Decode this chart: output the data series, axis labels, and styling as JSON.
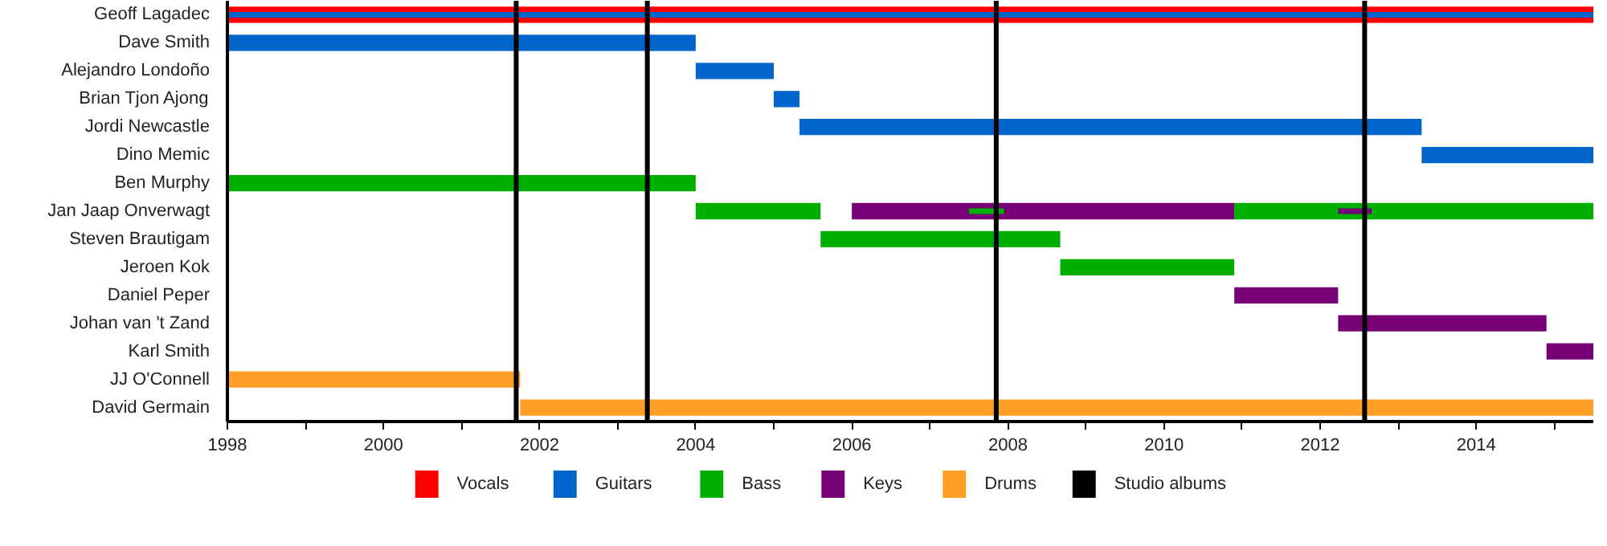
{
  "chart_data": {
    "type": "bar",
    "orientation": "horizontal",
    "categories": [
      "Geoff Lagadec",
      "Dave Smith",
      "Alejandro Londoño",
      "Brian Tjon Ajong",
      "Jordi Newcastle",
      "Dino Memic",
      "Ben Murphy",
      "Jan Jaap Onverwagt",
      "Steven Brautigam",
      "Jeroen Kok",
      "Daniel Peper",
      "Johan van 't Zand",
      "Karl Smith",
      "JJ O'Connell",
      "David Germain"
    ],
    "series": [
      {
        "name": "Vocals",
        "color": "#ff0000",
        "base": [
          1998,
          null,
          null,
          null,
          null,
          null,
          null,
          null,
          null,
          null,
          null,
          null,
          null,
          null,
          null
        ],
        "values": [
          17.5,
          null,
          null,
          null,
          null,
          null,
          null,
          null,
          null,
          null,
          null,
          null,
          null,
          null,
          null
        ]
      },
      {
        "name": "Guitars",
        "color": "#0066cc",
        "base": [
          1998,
          1998,
          2004,
          2005,
          2005.33,
          2013.3,
          null,
          null,
          null,
          null,
          null,
          null,
          null,
          null,
          null
        ],
        "values": [
          17.5,
          6,
          1,
          0.33,
          7.97,
          2.2,
          null,
          null,
          null,
          null,
          null,
          null,
          null,
          null,
          null
        ]
      },
      {
        "name": "Bass",
        "color": "#00b000",
        "base": [
          null,
          null,
          null,
          null,
          null,
          null,
          1998,
          2004,
          2005.6,
          2008.67,
          null,
          null,
          null,
          null,
          null
        ],
        "values": [
          null,
          null,
          null,
          null,
          null,
          null,
          6,
          1.6,
          3.07,
          2.23,
          null,
          null,
          null,
          null,
          null
        ]
      },
      {
        "color": "#00b000",
        "base": [
          null,
          null,
          null,
          null,
          null,
          null,
          null,
          2010.9,
          null,
          null,
          null,
          null,
          null,
          null,
          null
        ],
        "values": [
          null,
          null,
          null,
          null,
          null,
          null,
          null,
          4.6,
          null,
          null,
          null,
          null,
          null,
          null,
          null
        ]
      },
      {
        "color": "#00b000",
        "base": [
          null,
          null,
          null,
          null,
          null,
          null,
          null,
          2007.5,
          null,
          null,
          null,
          null,
          null,
          null,
          null
        ],
        "values": [
          null,
          null,
          null,
          null,
          null,
          null,
          null,
          0.45,
          null,
          null,
          null,
          null,
          null,
          null,
          null
        ]
      },
      {
        "name": "Keys",
        "color": "#770077",
        "base": [
          null,
          null,
          null,
          null,
          null,
          null,
          null,
          2006,
          null,
          null,
          2010.9,
          2012.23,
          2014.9,
          null,
          null
        ],
        "values": [
          null,
          null,
          null,
          null,
          null,
          null,
          null,
          4.9,
          null,
          null,
          1.33,
          2.67,
          0.6,
          null,
          null
        ]
      },
      {
        "color": "#770077",
        "base": [
          null,
          null,
          null,
          null,
          null,
          null,
          null,
          2012.23,
          null,
          null,
          null,
          null,
          null,
          null,
          null
        ],
        "values": [
          null,
          null,
          null,
          null,
          null,
          null,
          null,
          0.43,
          null,
          null,
          null,
          null,
          null,
          null,
          null
        ]
      },
      {
        "name": "Drums",
        "color": "#ff9f26",
        "base": [
          null,
          null,
          null,
          null,
          null,
          null,
          null,
          null,
          null,
          null,
          null,
          null,
          null,
          1998,
          2001.75
        ],
        "values": [
          null,
          null,
          null,
          null,
          null,
          null,
          null,
          null,
          null,
          null,
          null,
          null,
          null,
          3.75,
          13.75
        ]
      }
    ],
    "ref_lines": [
      {
        "axis": "x",
        "value": 2001.7,
        "label": "Studio albums",
        "color": "#000000"
      },
      {
        "axis": "x",
        "value": 2003.38,
        "color": "#000000"
      },
      {
        "axis": "x",
        "value": 2007.85,
        "color": "#000000"
      },
      {
        "axis": "x",
        "value": 2012.57,
        "color": "#000000"
      }
    ],
    "xlim": [
      1998,
      2015.5
    ],
    "xticks": [
      1998,
      {
        "value": 1999,
        "label": null
      },
      2000,
      {
        "value": 2001,
        "label": null
      },
      2002,
      {
        "value": 2003,
        "label": null
      },
      2004,
      {
        "value": 2005,
        "label": null
      },
      2006,
      {
        "value": 2007,
        "label": null
      },
      2008,
      {
        "value": 2009,
        "label": null
      },
      2010,
      {
        "value": 2011,
        "label": null
      },
      2012,
      {
        "value": 2013,
        "label": null
      },
      2014,
      {
        "value": 2015,
        "label": null
      }
    ],
    "grid": false,
    "legend": "bottom"
  }
}
